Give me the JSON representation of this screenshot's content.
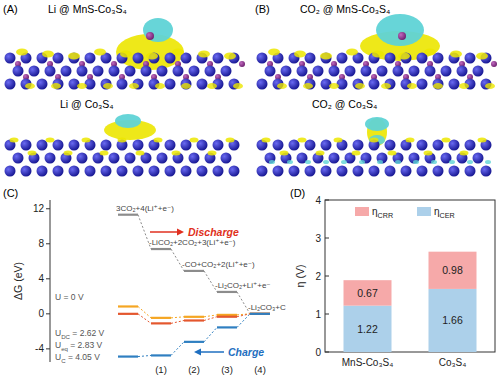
{
  "structures": [
    {
      "panel": "(A)",
      "labels": [
        "Li @ MnS-Co₃S₄",
        "Li @ Co₃S₄"
      ]
    },
    {
      "panel": "(B)",
      "labels": [
        "CO₂ @ MnS-Co₃S₄",
        "CO₂ @ Co₃S₄"
      ]
    }
  ],
  "chart_data": [
    {
      "type": "step",
      "panel": "(C)",
      "y_label": "ΔG (eV)",
      "categories": [
        null,
        "(1)",
        "(2)",
        "(3)",
        "(4)"
      ],
      "step_labels": [
        "3CO₂+4(Li⁺+e⁻)",
        "-LiCO₂+2CO₂+3(Li⁺+e⁻)",
        "-CO+CO₂+2(Li⁺+e⁻)",
        "-Li₂CO₂+Li⁺+e⁻",
        "-Li₂CO₃+C"
      ],
      "annotations": [
        "Discharge",
        "Charge"
      ],
      "ylim": [
        -5.5,
        13
      ],
      "yticks": [
        -4,
        0,
        4,
        8,
        12
      ],
      "series": [
        {
          "name": "U = 0 V",
          "color": "#8c8c8c",
          "values": [
            11.32,
            7.4,
            4.9,
            2.5,
            0
          ]
        },
        {
          "name": "UDC = 2.62 V",
          "color": "#f5a623",
          "values": [
            0.84,
            -0.46,
            -0.34,
            -0.12,
            0
          ]
        },
        {
          "name": "Ueq = 2.83 V",
          "color": "#e4572e",
          "values": [
            0,
            -1.09,
            -0.76,
            -0.33,
            0
          ]
        },
        {
          "name": "UC = 4.05 V",
          "color": "#2f7fc1",
          "values": [
            -4.88,
            -4.75,
            -3.2,
            -1.55,
            0
          ]
        }
      ]
    },
    {
      "type": "bar",
      "panel": "(D)",
      "stacked": true,
      "data_labels": true,
      "legend": "top",
      "y_label": "η (V)",
      "categories": [
        "MnS-Co₃S₄",
        "Co₃S₄"
      ],
      "ylim": [
        0,
        4
      ],
      "yticks": [
        0,
        1,
        2,
        3,
        4
      ],
      "series": [
        {
          "name": "ηCER",
          "color": "#acd0ea",
          "values": [
            1.22,
            1.66
          ]
        },
        {
          "name": "ηCRR",
          "color": "#f6a9a9",
          "values": [
            0.67,
            0.98
          ]
        }
      ]
    }
  ]
}
